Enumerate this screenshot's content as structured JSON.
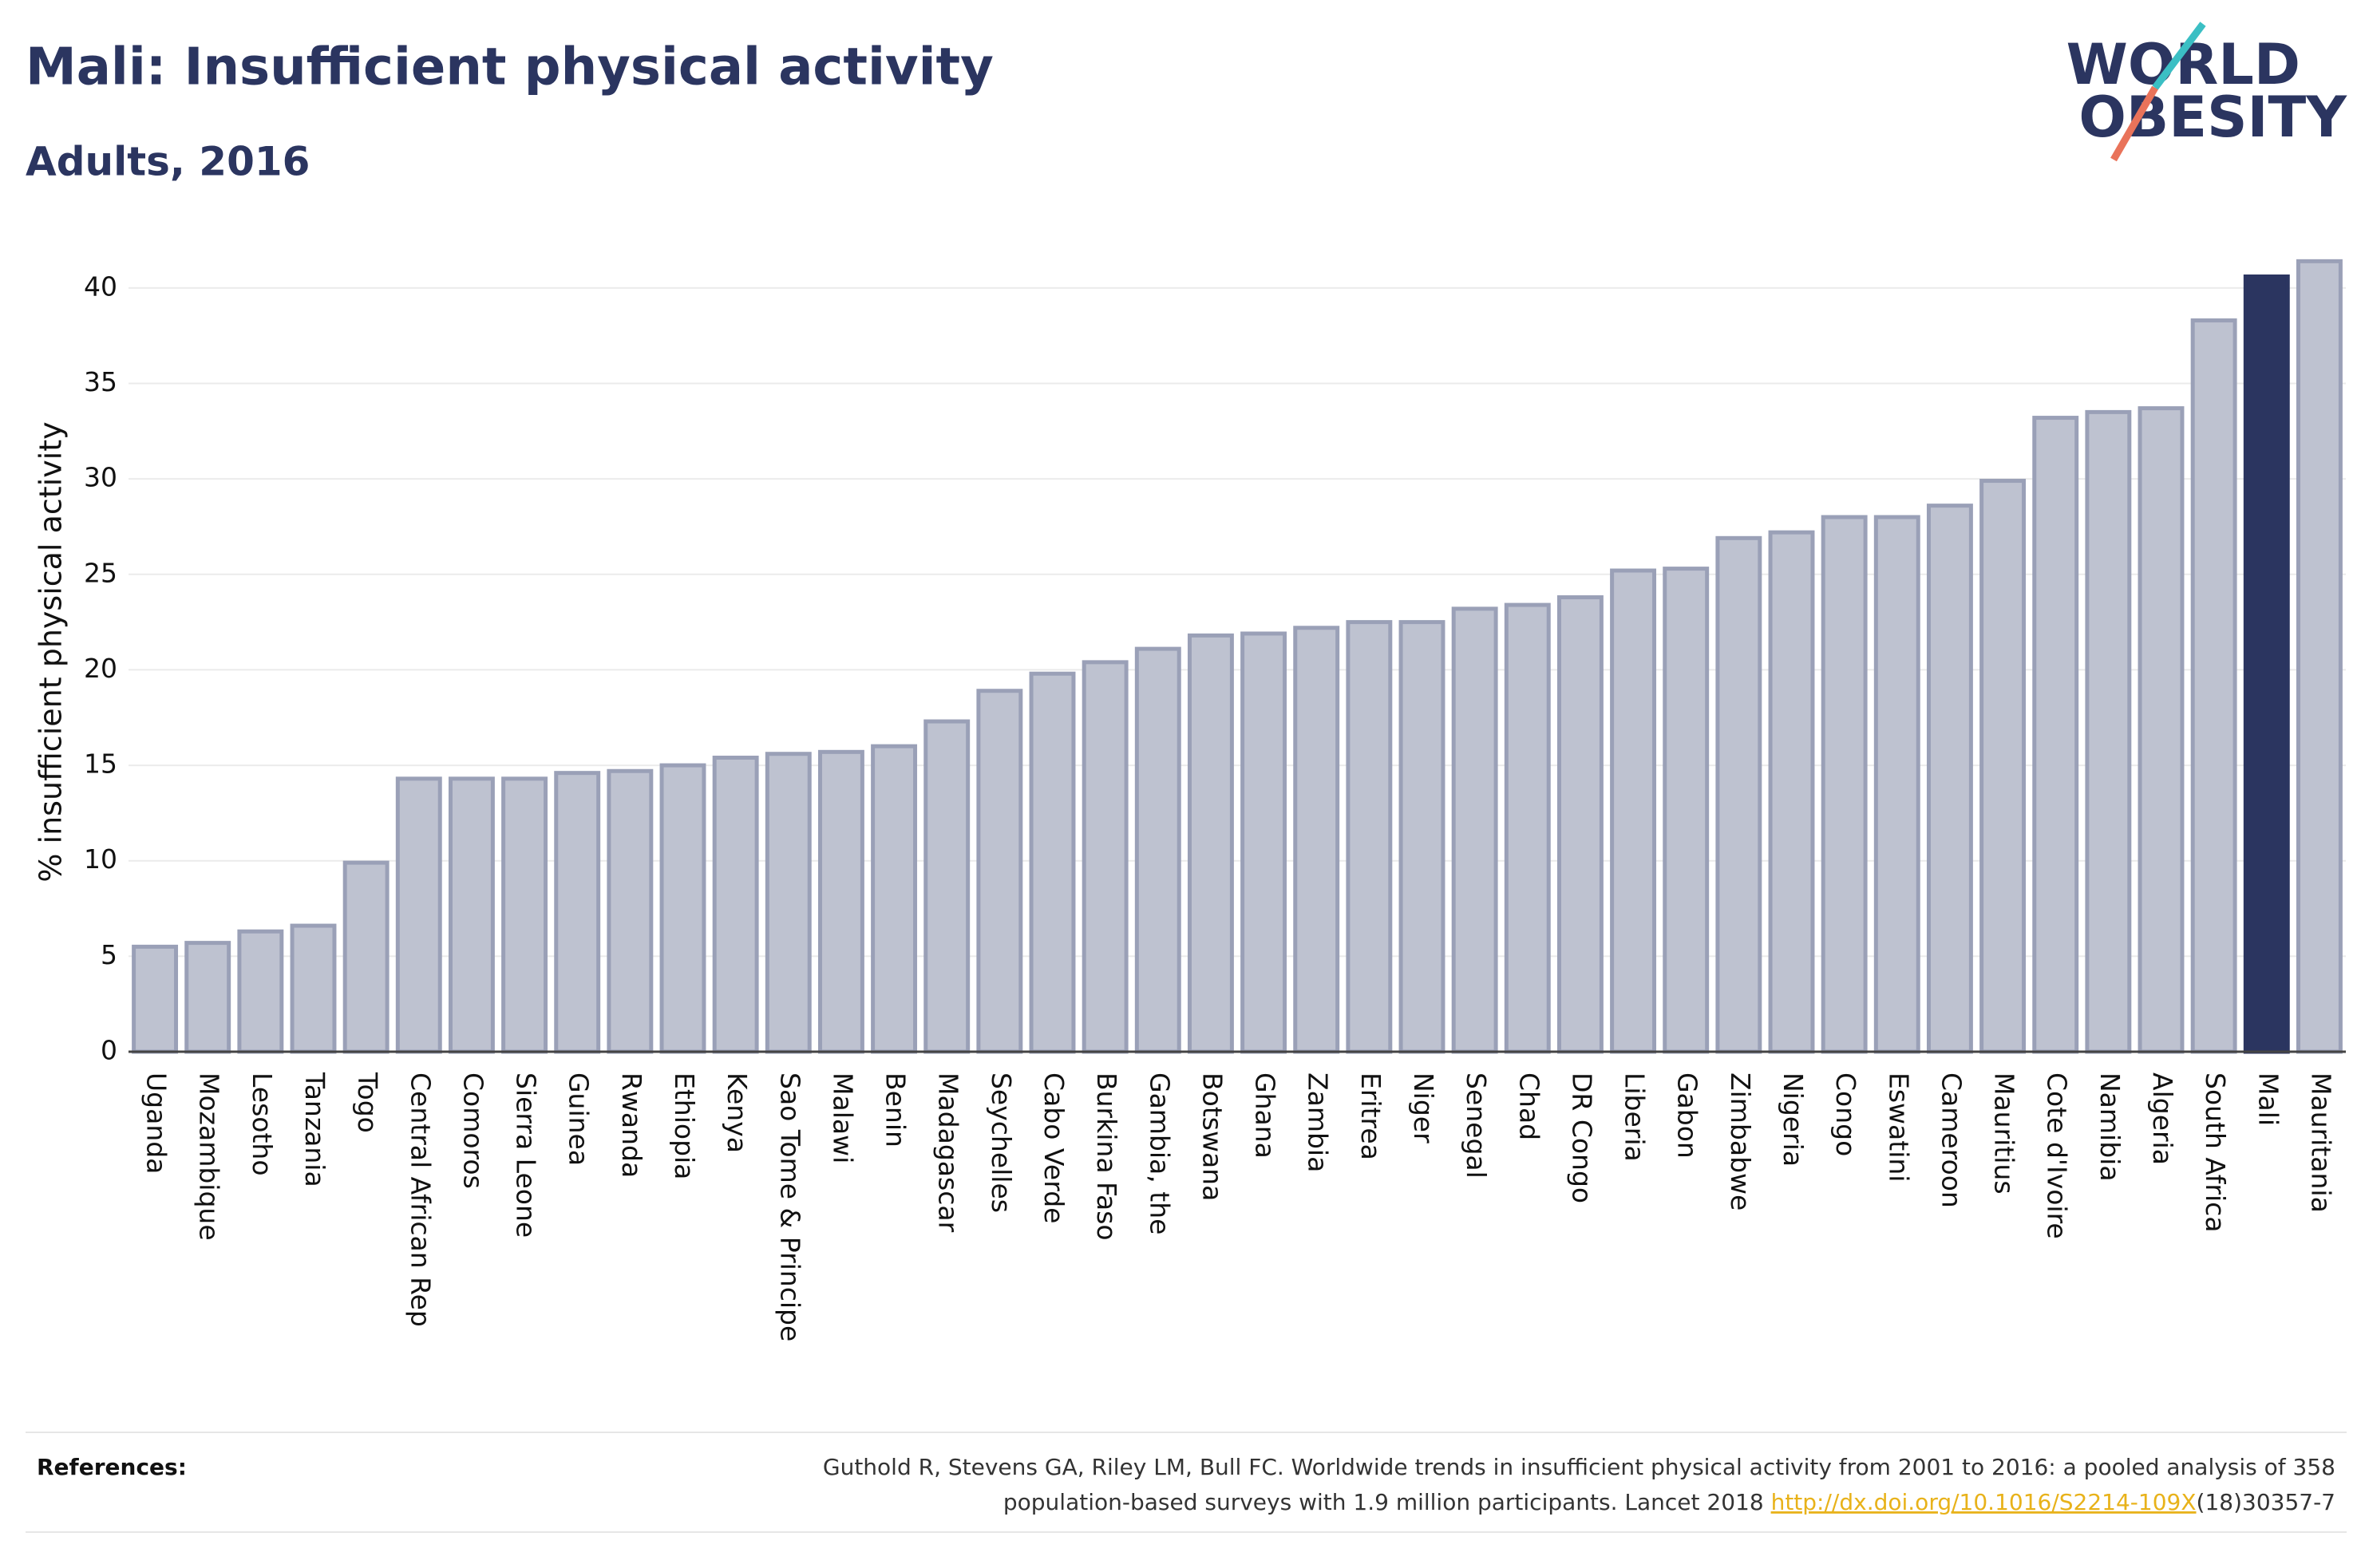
{
  "chart_data": {
    "type": "bar",
    "title": "Mali: Insufficient physical activity",
    "subtitle": "Adults, 2016",
    "y_label": "% insufficient physical activity",
    "categories": [
      "Uganda",
      "Mozambique",
      "Lesotho",
      "Tanzania",
      "Togo",
      "Central African Rep",
      "Comoros",
      "Sierra Leone",
      "Guinea",
      "Rwanda",
      "Ethiopia",
      "Kenya",
      "Sao Tome & Principe",
      "Malawi",
      "Benin",
      "Madagascar",
      "Seychelles",
      "Cabo Verde",
      "Burkina Faso",
      "Gambia, the",
      "Botswana",
      "Ghana",
      "Zambia",
      "Eritrea",
      "Niger",
      "Senegal",
      "Chad",
      "DR Congo",
      "Liberia",
      "Gabon",
      "Zimbabwe",
      "Nigeria",
      "Congo",
      "Eswatini",
      "Cameroon",
      "Mauritius",
      "Cote d'Ivoire",
      "Namibia",
      "Algeria",
      "South Africa",
      "Mali",
      "Mauritania"
    ],
    "values": [
      5.5,
      5.7,
      6.3,
      6.6,
      9.9,
      14.3,
      14.3,
      14.3,
      14.6,
      14.7,
      15.0,
      15.4,
      15.6,
      15.7,
      16.0,
      17.3,
      18.9,
      19.8,
      20.4,
      21.1,
      21.8,
      21.9,
      22.2,
      22.5,
      22.5,
      23.2,
      23.4,
      23.8,
      25.2,
      25.3,
      26.9,
      27.2,
      28.0,
      28.0,
      28.6,
      29.9,
      33.2,
      33.5,
      33.7,
      38.3,
      40.6,
      41.4
    ],
    "colors": [
      "#bec2d0",
      "#bec2d0",
      "#bec2d0",
      "#bec2d0",
      "#bec2d0",
      "#bec2d0",
      "#bec2d0",
      "#bec2d0",
      "#bec2d0",
      "#bec2d0",
      "#bec2d0",
      "#bec2d0",
      "#bec2d0",
      "#bec2d0",
      "#bec2d0",
      "#bec2d0",
      "#bec2d0",
      "#bec2d0",
      "#bec2d0",
      "#bec2d0",
      "#bec2d0",
      "#bec2d0",
      "#bec2d0",
      "#bec2d0",
      "#bec2d0",
      "#bec2d0",
      "#bec2d0",
      "#bec2d0",
      "#bec2d0",
      "#bec2d0",
      "#bec2d0",
      "#bec2d0",
      "#bec2d0",
      "#bec2d0",
      "#bec2d0",
      "#bec2d0",
      "#bec2d0",
      "#bec2d0",
      "#bec2d0",
      "#bec2d0",
      "#2b3560",
      "#bec2d0"
    ],
    "ylim": [
      0,
      42
    ],
    "yticks": [
      0,
      5,
      10,
      15,
      20,
      25,
      30,
      35,
      40
    ],
    "grid": true
  },
  "logo": {
    "line1": "WORLD",
    "line2": "OBESITY"
  },
  "references": {
    "label": "References:",
    "line1": "Guthold R, Stevens GA, Riley LM, Bull FC. Worldwide trends in insufficient physical activity from 2001 to 2016: a pooled analysis of 358",
    "line2_before": "population-based surveys with 1.9 million participants. Lancet 2018 ",
    "link": "http://dx.doi.org/10.1016/S2214-109X",
    "line2_after": "(18)30357-7"
  }
}
